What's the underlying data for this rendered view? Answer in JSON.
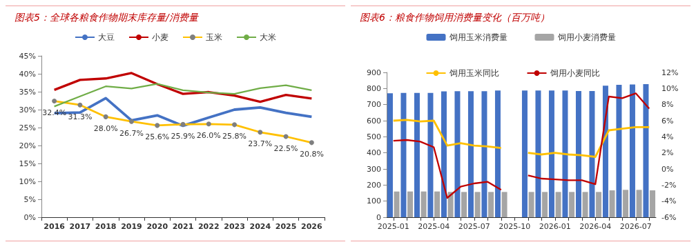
{
  "chart_data": [
    {
      "type": "line",
      "title": "图表5：全球各粮食作物期末库存量/消费量",
      "categories": [
        "2016",
        "2017",
        "2018",
        "2019",
        "2020",
        "2021",
        "2022",
        "2023",
        "2024",
        "2025",
        "2026"
      ],
      "ylim": [
        0,
        45
      ],
      "yticks": [
        {
          "value": 0,
          "label": "0%"
        },
        {
          "value": 5,
          "label": "5%"
        },
        {
          "value": 10,
          "label": "10%"
        },
        {
          "value": 15,
          "label": "15%"
        },
        {
          "value": 20,
          "label": "20%"
        },
        {
          "value": 25,
          "label": "25%"
        },
        {
          "value": 30,
          "label": "30%"
        },
        {
          "value": 35,
          "label": "35%"
        },
        {
          "value": 40,
          "label": "40%"
        },
        {
          "value": 45,
          "label": "45%"
        }
      ],
      "grid": false,
      "legend": "top",
      "marker": "none",
      "series": [
        {
          "name": "大豆",
          "color": "#4472c4",
          "values": [
            29.0,
            29.2,
            33.2,
            27.0,
            28.4,
            25.5,
            27.8,
            30.0,
            30.6,
            29.1,
            28.0
          ]
        },
        {
          "name": "小麦",
          "color": "#c00000",
          "values": [
            35.5,
            38.3,
            38.7,
            40.2,
            37.1,
            34.4,
            34.9,
            33.9,
            32.2,
            34.1,
            33.1
          ]
        },
        {
          "name": "玉米",
          "color": "#ffc000",
          "marker": "circle",
          "values": [
            32.4,
            31.3,
            28.0,
            26.7,
            25.6,
            25.9,
            26.0,
            25.8,
            23.7,
            22.5,
            20.8
          ],
          "value_labels": [
            "32.4%",
            "31.3%",
            "28.0%",
            "26.7%",
            "25.6%",
            "25.9%",
            "26.0%",
            "25.8%",
            "23.7%",
            "22.5%",
            "20.8%"
          ]
        },
        {
          "name": "大米",
          "color": "#70ad47",
          "values": [
            30.9,
            33.7,
            36.5,
            35.9,
            37.2,
            35.4,
            34.8,
            34.4,
            36.0,
            36.8,
            35.4
          ]
        }
      ]
    },
    {
      "type": "bar",
      "title": "图表6：粮食作物饲用消费量变化（百万吨）",
      "categories": [
        "2025-01",
        null,
        null,
        "2025-04",
        null,
        null,
        "2025-07",
        null,
        null,
        "2025-10",
        null,
        null,
        "2026-01",
        null,
        null,
        "2026-04",
        null,
        null,
        "2026-07",
        null
      ],
      "ylim": [
        0,
        900
      ],
      "yticks": [
        0,
        100,
        200,
        300,
        400,
        500,
        600,
        700,
        800,
        900
      ],
      "y2lim": [
        -6,
        12
      ],
      "y2ticks": [
        {
          "value": -6,
          "label": "-6%"
        },
        {
          "value": -4,
          "label": "-4%"
        },
        {
          "value": -2,
          "label": "-2%"
        },
        {
          "value": 0,
          "label": "0%"
        },
        {
          "value": 2,
          "label": "2%"
        },
        {
          "value": 4,
          "label": "4%"
        },
        {
          "value": 6,
          "label": "6%"
        },
        {
          "value": 8,
          "label": "8%"
        },
        {
          "value": 10,
          "label": "10%"
        },
        {
          "value": 12,
          "label": "12%"
        }
      ],
      "grid": false,
      "legend": "top",
      "marker": "none",
      "series": [
        {
          "name": "饲用玉米消费量",
          "color": "#4472c4",
          "values": [
            770,
            773,
            773,
            773,
            782,
            783,
            783,
            783,
            787,
            null,
            787,
            787,
            787,
            787,
            784,
            784,
            818,
            823,
            825,
            827
          ]
        },
        {
          "name": "饲用小麦消费量",
          "color": "#a5a5a5",
          "values": [
            160,
            160,
            160,
            160,
            157,
            157,
            157,
            157,
            157,
            null,
            157,
            157,
            157,
            157,
            157,
            157,
            167,
            170,
            170,
            167
          ]
        },
        {
          "name": "饲用玉米同比",
          "type": "line",
          "axis": "y2",
          "color": "#ffc000",
          "values": [
            6.0,
            6.1,
            5.9,
            6.0,
            2.9,
            3.2,
            2.9,
            2.8,
            2.6,
            null,
            2.0,
            1.8,
            2.0,
            1.8,
            1.7,
            1.5,
            4.8,
            5.0,
            5.2,
            5.2
          ]
        },
        {
          "name": "饲用小麦同比",
          "type": "line",
          "axis": "y2",
          "color": "#c00000",
          "values": [
            3.5,
            3.6,
            3.4,
            2.7,
            -3.6,
            -2.2,
            -1.8,
            -1.6,
            -2.6,
            null,
            -0.8,
            -1.2,
            -1.3,
            -1.4,
            -1.4,
            -1.9,
            9.0,
            8.8,
            9.4,
            7.5
          ]
        }
      ]
    }
  ]
}
